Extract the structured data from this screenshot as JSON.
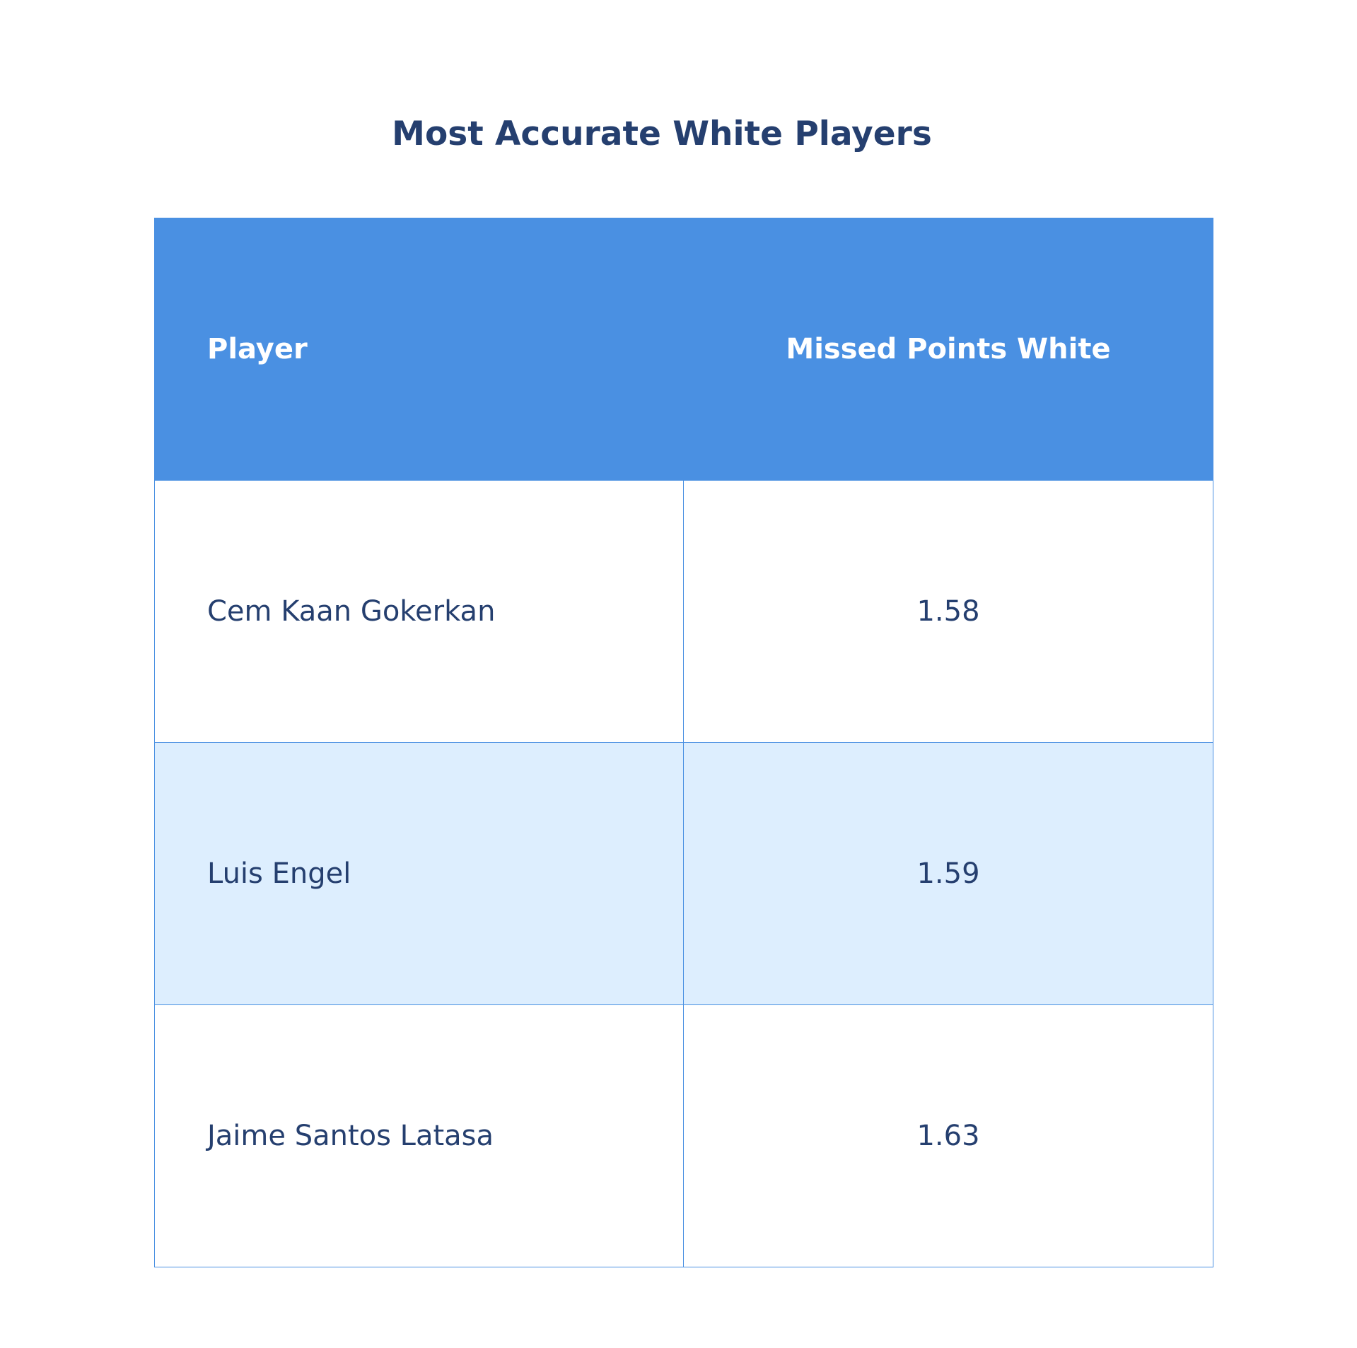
{
  "title": "Most Accurate White Players",
  "colors": {
    "header_bg": "#4a90e2",
    "header_text": "#ffffff",
    "body_text": "#253f6f",
    "alt_row_bg": "#ddeefe",
    "border": "#4a90e2"
  },
  "chart_data": {
    "type": "table",
    "title": "Most Accurate White Players",
    "columns": [
      "Player",
      "Missed Points White"
    ],
    "rows": [
      {
        "player": "Cem Kaan Gokerkan",
        "value": "1.58"
      },
      {
        "player": "Luis Engel",
        "value": "1.59"
      },
      {
        "player": "Jaime Santos Latasa",
        "value": "1.63"
      }
    ]
  }
}
